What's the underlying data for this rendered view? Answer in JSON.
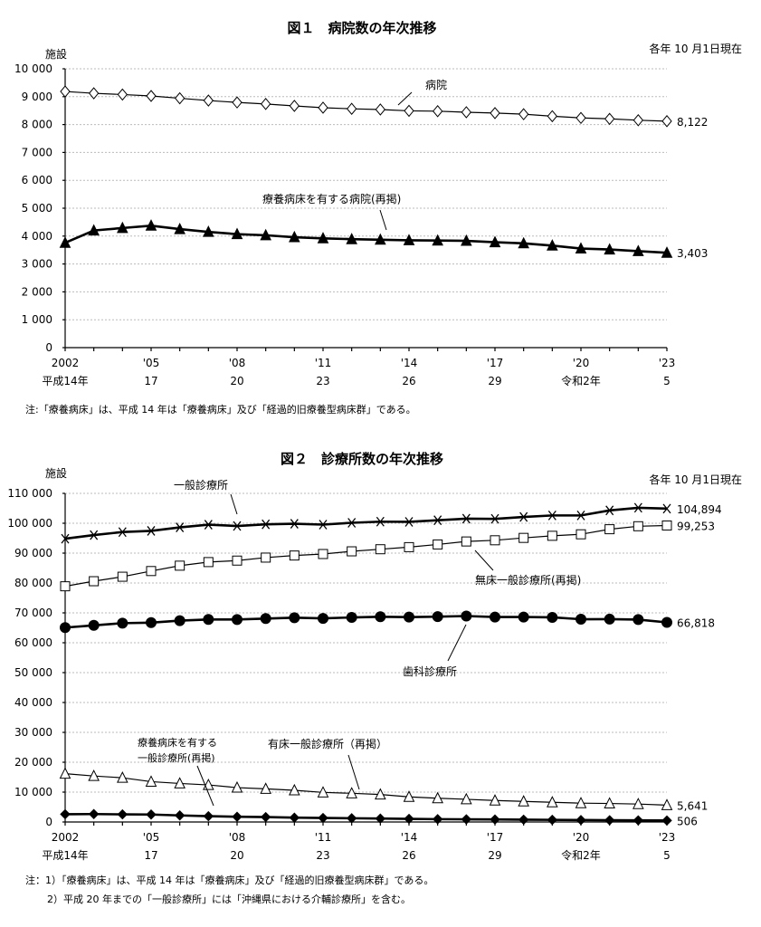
{
  "chart_data": [
    {
      "type": "line",
      "title": "図１　病院数の年次推移",
      "subtitle": "各年 10 月1日現在",
      "ylabel": "施設",
      "ylim": [
        0,
        10000
      ],
      "yticks": [
        "0",
        "1 000",
        "2 000",
        "3 000",
        "4 000",
        "5 000",
        "6 000",
        "7 000",
        "8 000",
        "9 000",
        "10 000"
      ],
      "x": [
        2002,
        2003,
        2004,
        2005,
        2006,
        2007,
        2008,
        2009,
        2010,
        2011,
        2012,
        2013,
        2014,
        2015,
        2016,
        2017,
        2018,
        2019,
        2020,
        2021,
        2022,
        2023
      ],
      "xticks": [
        {
          "year": 2002,
          "label": "2002",
          "era": "平成14年"
        },
        {
          "year": 2005,
          "label": "'05",
          "era": "17"
        },
        {
          "year": 2008,
          "label": "'08",
          "era": "20"
        },
        {
          "year": 2011,
          "label": "'11",
          "era": "23"
        },
        {
          "year": 2014,
          "label": "'14",
          "era": "26"
        },
        {
          "year": 2017,
          "label": "'17",
          "era": "29"
        },
        {
          "year": 2020,
          "label": "'20",
          "era": "令和2年"
        },
        {
          "year": 2023,
          "label": "'23",
          "era": "5"
        }
      ],
      "series": [
        {
          "name": "病院",
          "marker": "diamond-open",
          "end_label": "8,122",
          "values": [
            9187,
            9122,
            9077,
            9026,
            8943,
            8862,
            8794,
            8739,
            8670,
            8605,
            8565,
            8540,
            8493,
            8480,
            8442,
            8412,
            8372,
            8300,
            8238,
            8205,
            8156,
            8122
          ]
        },
        {
          "name": "療養病床を有する病院(再掲)",
          "marker": "triangle-filled",
          "end_label": "3,403",
          "values": [
            3760,
            4200,
            4290,
            4374,
            4250,
            4150,
            4070,
            4030,
            3960,
            3920,
            3890,
            3870,
            3850,
            3840,
            3830,
            3780,
            3740,
            3660,
            3554,
            3520,
            3460,
            3403
          ]
        }
      ],
      "note": "注:「療養病床」は、平成 14 年は「療養病床」及び「経過的旧療養型病床群」である。"
    },
    {
      "type": "line",
      "title": "図２　診療所数の年次推移",
      "subtitle": "各年 10 月1日現在",
      "ylabel": "施設",
      "ylim": [
        0,
        110000
      ],
      "yticks": [
        "0",
        "10 000",
        "20 000",
        "30 000",
        "40 000",
        "50 000",
        "60 000",
        "70 000",
        "80 000",
        "90 000",
        "100 000",
        "110 000"
      ],
      "x": [
        2002,
        2003,
        2004,
        2005,
        2006,
        2007,
        2008,
        2009,
        2010,
        2011,
        2012,
        2013,
        2014,
        2015,
        2016,
        2017,
        2018,
        2019,
        2020,
        2021,
        2022,
        2023
      ],
      "xticks": [
        {
          "year": 2002,
          "label": "2002",
          "era": "平成14年"
        },
        {
          "year": 2005,
          "label": "'05",
          "era": "17"
        },
        {
          "year": 2008,
          "label": "'08",
          "era": "20"
        },
        {
          "year": 2011,
          "label": "'11",
          "era": "23"
        },
        {
          "year": 2014,
          "label": "'14",
          "era": "26"
        },
        {
          "year": 2017,
          "label": "'17",
          "era": "29"
        },
        {
          "year": 2020,
          "label": "'20",
          "era": "令和2年"
        },
        {
          "year": 2023,
          "label": "'23",
          "era": "5"
        }
      ],
      "series": [
        {
          "name": "一般診療所",
          "marker": "x",
          "end_label": "104,894",
          "values": [
            94819,
            96050,
            97051,
            97442,
            98609,
            99532,
            99083,
            99635,
            99824,
            99547,
            100152,
            100528,
            100461,
            100995,
            101529,
            101471,
            102105,
            102616,
            102612,
            104292,
            105182,
            104894
          ]
        },
        {
          "name": "無床一般診療所(再掲)",
          "marker": "square-open",
          "end_label": "99,253",
          "values": [
            78900,
            80600,
            82100,
            84000,
            85800,
            87000,
            87500,
            88500,
            89200,
            89700,
            90600,
            91300,
            92000,
            92900,
            93900,
            94300,
            95100,
            95800,
            96300,
            98000,
            99000,
            99253
          ]
        },
        {
          "name": "歯科診療所",
          "marker": "circle-filled",
          "end_label": "66,818",
          "values": [
            65073,
            65828,
            66557,
            66732,
            67392,
            67798,
            67779,
            68097,
            68384,
            68156,
            68474,
            68701,
            68592,
            68737,
            68940,
            68609,
            68613,
            68500,
            67874,
            67899,
            67755,
            66818
          ]
        },
        {
          "name": "有床一般診療所（再掲）",
          "marker": "triangle-open",
          "end_label": "5,641",
          "values": [
            16178,
            15400,
            14800,
            13500,
            12900,
            12400,
            11500,
            11100,
            10600,
            9900,
            9600,
            9200,
            8400,
            7960,
            7600,
            7200,
            6900,
            6600,
            6300,
            6200,
            6000,
            5641
          ]
        },
        {
          "name": "療養病床を有する一般診療所(再掲)",
          "name_lines": [
            "療養病床を有する",
            "一般診療所(再掲)"
          ],
          "marker": "diamond-filled",
          "end_label": "506",
          "values": [
            2600,
            2650,
            2550,
            2500,
            2200,
            1950,
            1750,
            1650,
            1450,
            1350,
            1250,
            1150,
            1050,
            950,
            900,
            850,
            780,
            720,
            650,
            600,
            550,
            506
          ]
        }
      ],
      "notes": [
        "注：1）「療養病床」は、平成 14 年は「療養病床」及び「経過的旧療養型病床群」である。",
        "2）平成 20 年までの「一般診療所」には「沖縄県における介輔診療所」を含む。"
      ]
    }
  ]
}
